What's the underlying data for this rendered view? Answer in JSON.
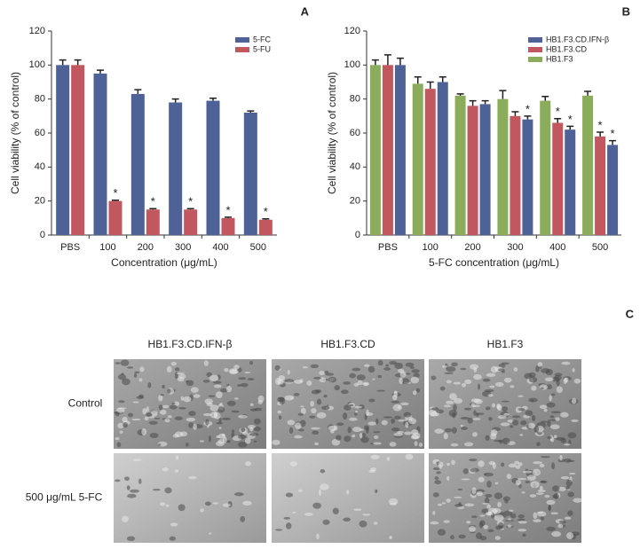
{
  "chart_data": [
    {
      "type": "bar",
      "panel": "A",
      "categories": [
        "PBS",
        "100",
        "200",
        "300",
        "400",
        "500"
      ],
      "series": [
        {
          "name": "5-FC",
          "color": "#4f6298",
          "values": [
            100,
            95,
            83,
            78,
            79,
            72
          ],
          "errors": [
            3,
            2,
            2.5,
            2,
            1.5,
            1
          ],
          "significance": [
            null,
            null,
            null,
            null,
            null,
            null
          ]
        },
        {
          "name": "5-FU",
          "color": "#c2585f",
          "values": [
            100,
            20,
            15,
            15,
            10,
            9
          ],
          "errors": [
            3,
            0.5,
            0.5,
            0.5,
            0.5,
            0.5
          ],
          "significance": [
            null,
            "*",
            "*",
            "*",
            "*",
            "*"
          ]
        }
      ],
      "xlabel": "Concentration (μg/mL)",
      "ylabel": "Cell viability (% of control)",
      "ylim": [
        0,
        120
      ],
      "yticks": [
        0,
        20,
        40,
        60,
        80,
        100,
        120
      ],
      "grid": false,
      "legend": "upper right"
    },
    {
      "type": "bar",
      "panel": "B",
      "categories": [
        "PBS",
        "100",
        "200",
        "300",
        "400",
        "500"
      ],
      "series": [
        {
          "name": "HB1.F3.CD.IFN-β",
          "color": "#4f6298",
          "values": [
            100,
            90,
            77,
            68,
            62,
            53
          ],
          "errors": [
            4,
            3,
            2,
            2,
            2,
            2.5
          ],
          "significance": [
            null,
            null,
            null,
            "*",
            "*",
            "*"
          ]
        },
        {
          "name": "HB1.F3.CD",
          "color": "#c2585f",
          "values": [
            100,
            86,
            76,
            70,
            66,
            58
          ],
          "errors": [
            6,
            4,
            3,
            2.5,
            2.5,
            2.5
          ],
          "significance": [
            null,
            null,
            null,
            null,
            "*",
            "*"
          ]
        },
        {
          "name": "HB1.F3",
          "color": "#8bac5b",
          "values": [
            100,
            89,
            82,
            80,
            79,
            82
          ],
          "errors": [
            3,
            4,
            1,
            5,
            2.5,
            2.5
          ],
          "significance": [
            null,
            null,
            null,
            null,
            null,
            null
          ]
        }
      ],
      "xlabel": "5-FC concentration (μg/mL)",
      "ylabel": "Cell viability (% of control)",
      "ylim": [
        0,
        120
      ],
      "yticks": [
        0,
        20,
        40,
        60,
        80,
        100,
        120
      ],
      "grid": false,
      "legend": "upper right"
    }
  ],
  "panel_c": {
    "panel": "C",
    "columns": [
      "HB1.F3.CD.IFN-β",
      "HB1.F3.CD",
      "HB1.F3"
    ],
    "rows": [
      "Control",
      "500 μg/mL 5-FC"
    ]
  }
}
